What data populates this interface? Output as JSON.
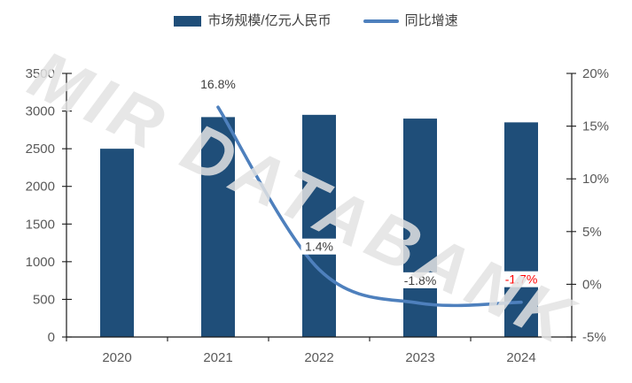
{
  "watermark": "MIR DATABANK",
  "legend": {
    "bar_label": "市场规模/亿元人民币",
    "line_label": "同比增速"
  },
  "colors": {
    "bar": "#1F4E79",
    "line": "#4E80BD",
    "axis_line": "#1A1A1A",
    "tick_label": "#595959",
    "data_label": "#404040",
    "data_label_red": "#FF0000",
    "watermark": "rgba(227,227,227,0.85)",
    "label_box_fill": "#FFFFFF",
    "background": "#FFFFFF"
  },
  "chart_data": {
    "type": "combo_bar_line",
    "categories": [
      "2020",
      "2021",
      "2022",
      "2023",
      "2024"
    ],
    "series": [
      {
        "name": "市场规模/亿元人民币",
        "type": "bar",
        "axis": "left",
        "color": "#1F4E79",
        "values": [
          2500,
          2920,
          2950,
          2900,
          2850
        ]
      },
      {
        "name": "同比增速",
        "type": "line",
        "axis": "right",
        "color": "#4E80BD",
        "unit": "%",
        "values": [
          null,
          16.8,
          1.4,
          -1.8,
          -1.7
        ],
        "data_labels": [
          null,
          "16.8%",
          "1.4%",
          "-1.8%",
          "-1.7%"
        ],
        "data_label_colors": [
          null,
          "#404040",
          "#404040",
          "#404040",
          "#FF0000"
        ]
      }
    ],
    "left_axis": {
      "min": 0,
      "max": 3500,
      "step": 500,
      "tick_labels": [
        "0",
        "500",
        "1000",
        "1500",
        "2000",
        "2500",
        "3000",
        "3500"
      ]
    },
    "right_axis": {
      "min": -5,
      "max": 20,
      "step": 5,
      "tick_labels": [
        "-5%",
        "0%",
        "5%",
        "10%",
        "15%",
        "20%"
      ]
    },
    "grid": false,
    "legend_position": "top-center",
    "smoothed_line": true
  }
}
